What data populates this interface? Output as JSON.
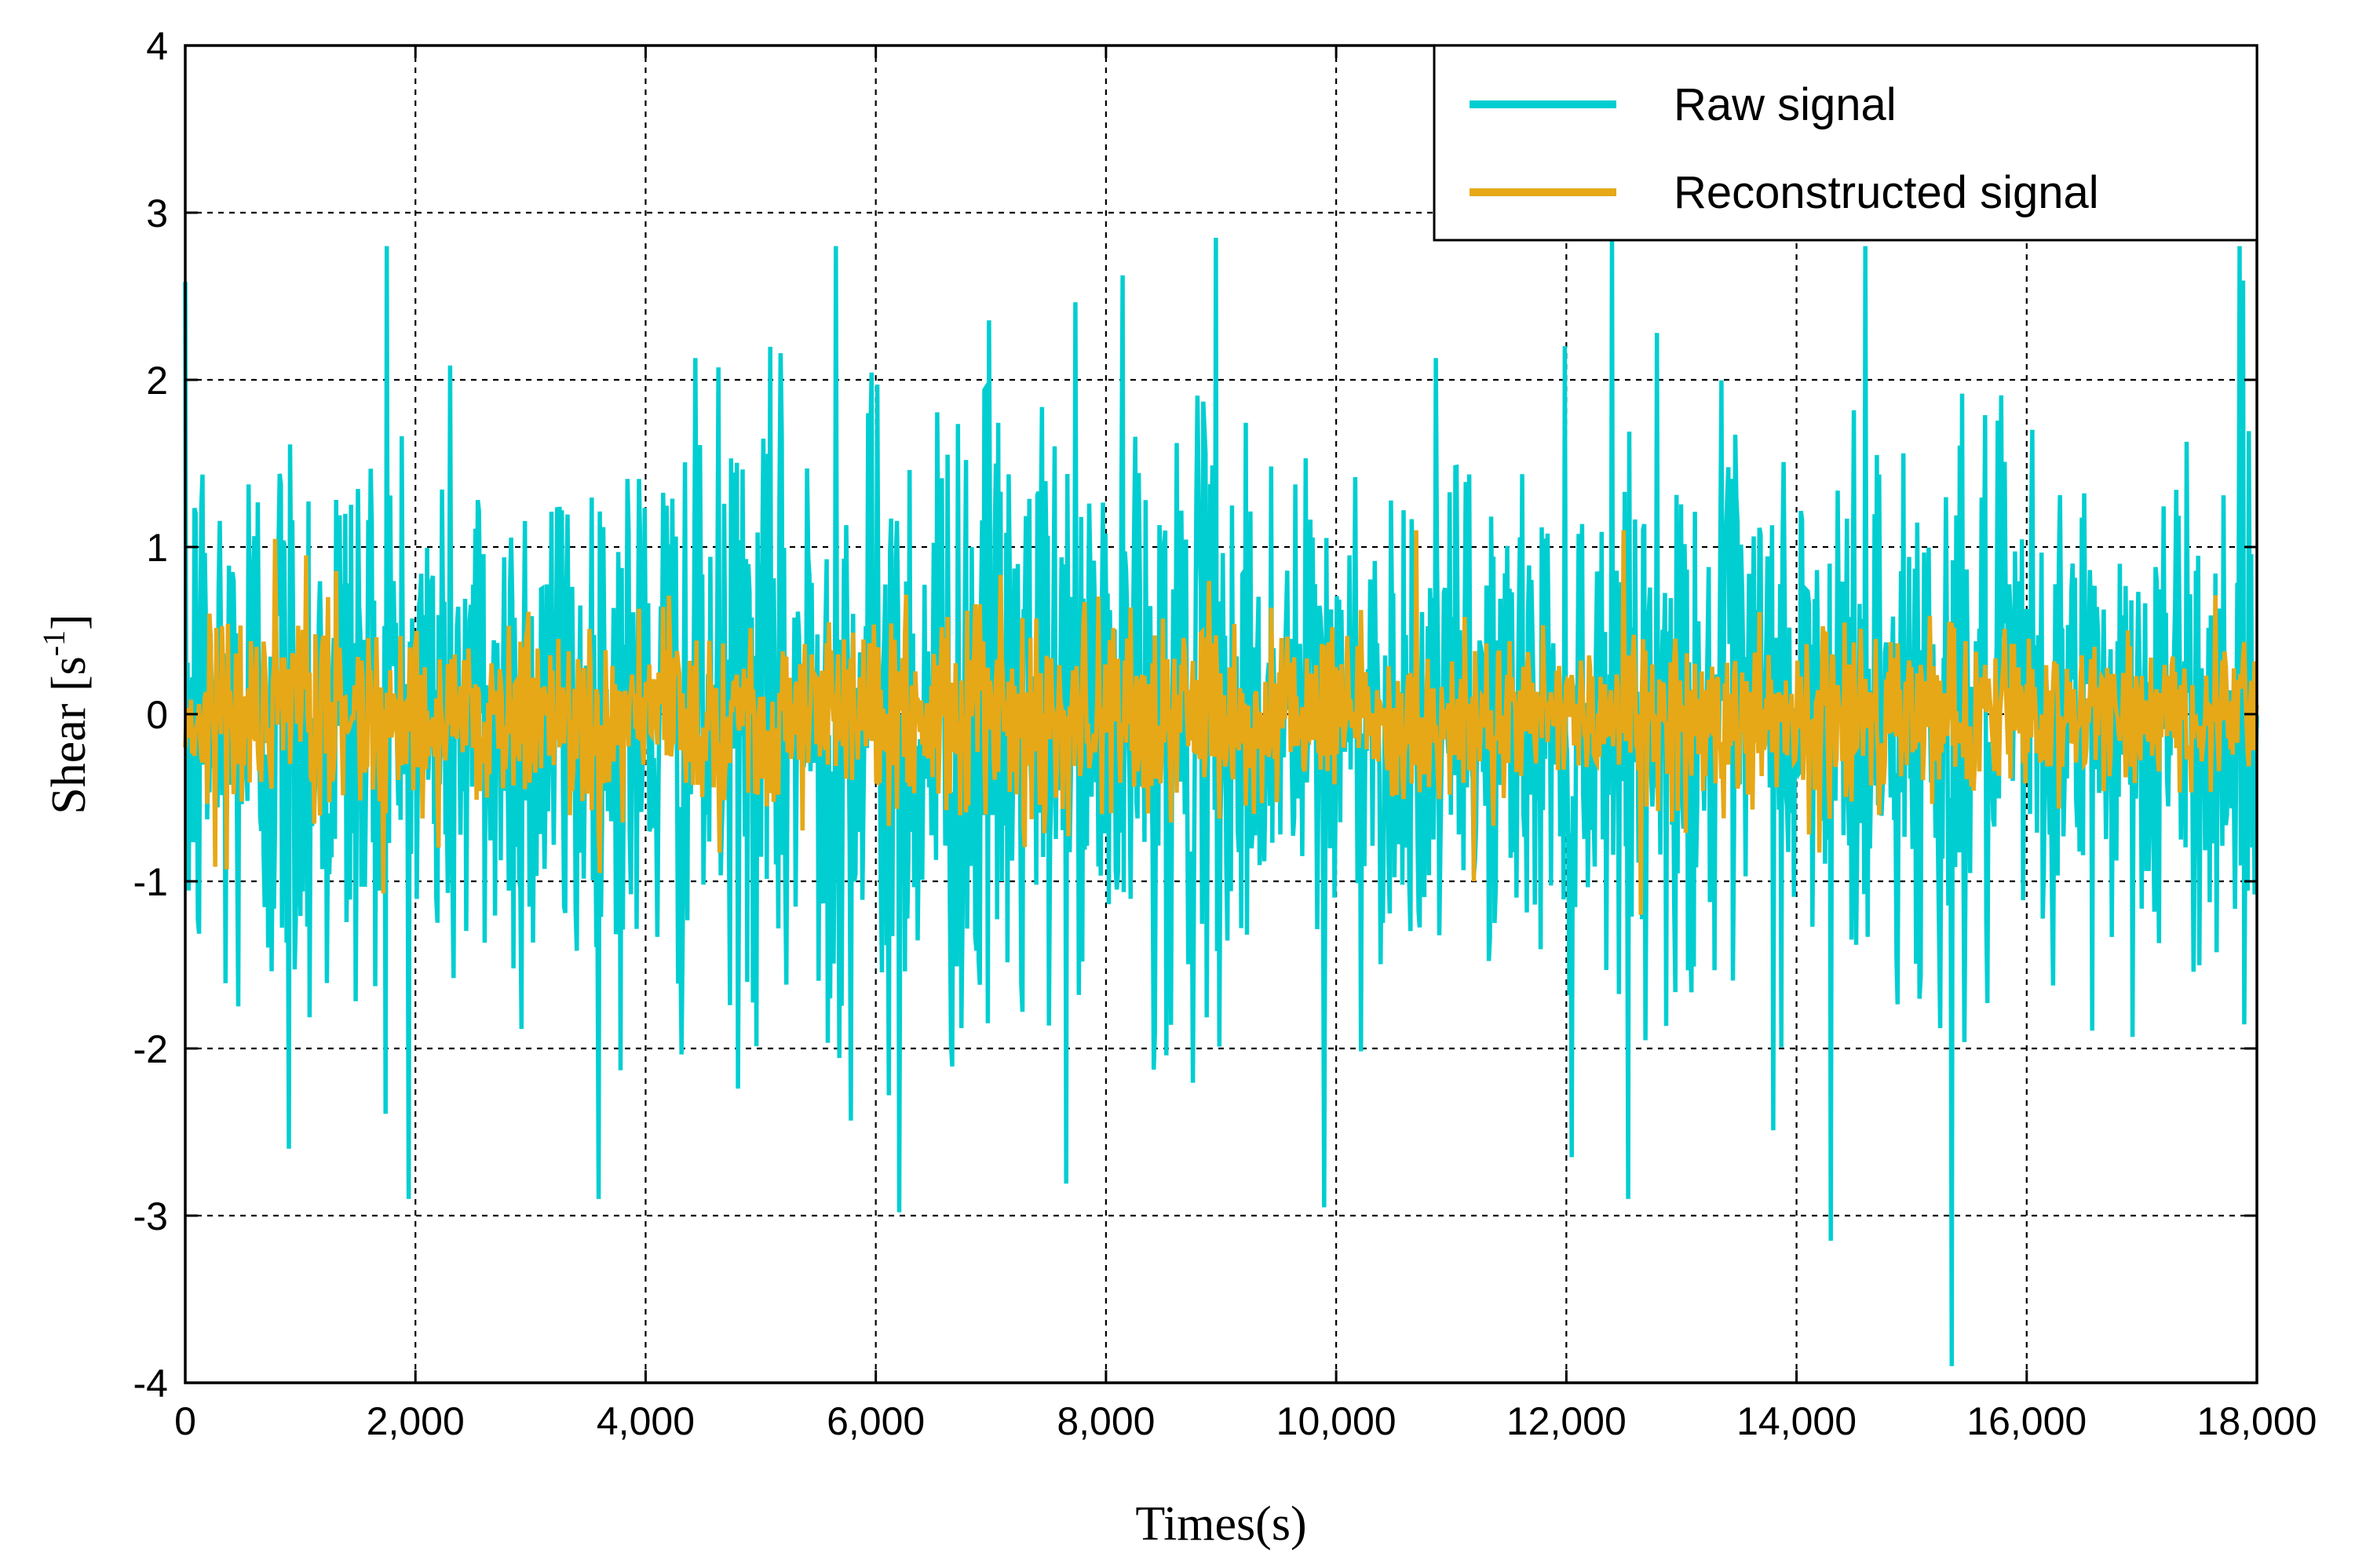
{
  "chart_data": {
    "type": "line",
    "title": "",
    "xlabel": "Times(s)",
    "ylabel": {
      "base": "Shear [s",
      "sup": "-1",
      "close": "]"
    },
    "xlim": [
      0,
      18000
    ],
    "ylim": [
      -4,
      4
    ],
    "grid": true,
    "legend_position": "top-right",
    "x_ticks": [
      0,
      2000,
      4000,
      6000,
      8000,
      10000,
      12000,
      14000,
      16000,
      18000
    ],
    "x_tick_labels": [
      "0",
      "2,000",
      "4,000",
      "6,000",
      "8,000",
      "10,000",
      "12,000",
      "14,000",
      "16,000",
      "18,000"
    ],
    "y_ticks": [
      -4,
      -3,
      -2,
      -1,
      0,
      1,
      2,
      3,
      4
    ],
    "y_tick_labels": [
      "-4",
      "-3",
      "-2",
      "-1",
      "0",
      "1",
      "2",
      "3",
      "4"
    ],
    "series": [
      {
        "name": "Raw signal",
        "color": "#00CED1",
        "n_samples": 1800,
        "noise_sigma": 0.85,
        "peaks": [
          {
            "x": 1750,
            "y": 2.8
          },
          {
            "x": 5650,
            "y": 2.8
          },
          {
            "x": 8950,
            "y": 2.85
          },
          {
            "x": 12400,
            "y": 2.85
          },
          {
            "x": 14600,
            "y": 2.8
          },
          {
            "x": 17850,
            "y": 2.8
          },
          {
            "x": 900,
            "y": -2.6
          },
          {
            "x": 6200,
            "y": -2.98
          },
          {
            "x": 9900,
            "y": -2.95
          },
          {
            "x": 14300,
            "y": -3.15
          },
          {
            "x": 15350,
            "y": -3.9
          },
          {
            "x": 12050,
            "y": -2.65
          }
        ]
      },
      {
        "name": "Reconstructed signal",
        "color": "#E6A817",
        "n_samples": 1800,
        "noise_sigma": 0.27,
        "peaks": [
          {
            "x": 10700,
            "y": 1.1
          },
          {
            "x": 12500,
            "y": 1.1
          },
          {
            "x": 1050,
            "y": 0.95
          },
          {
            "x": 12650,
            "y": -1.2
          },
          {
            "x": 3600,
            "y": -0.95
          },
          {
            "x": 11200,
            "y": -1.0
          }
        ]
      }
    ]
  },
  "legend": {
    "items": [
      {
        "label": "Raw signal",
        "color": "#00CED1"
      },
      {
        "label": "Reconstructed signal",
        "color": "#E6A817"
      }
    ]
  }
}
